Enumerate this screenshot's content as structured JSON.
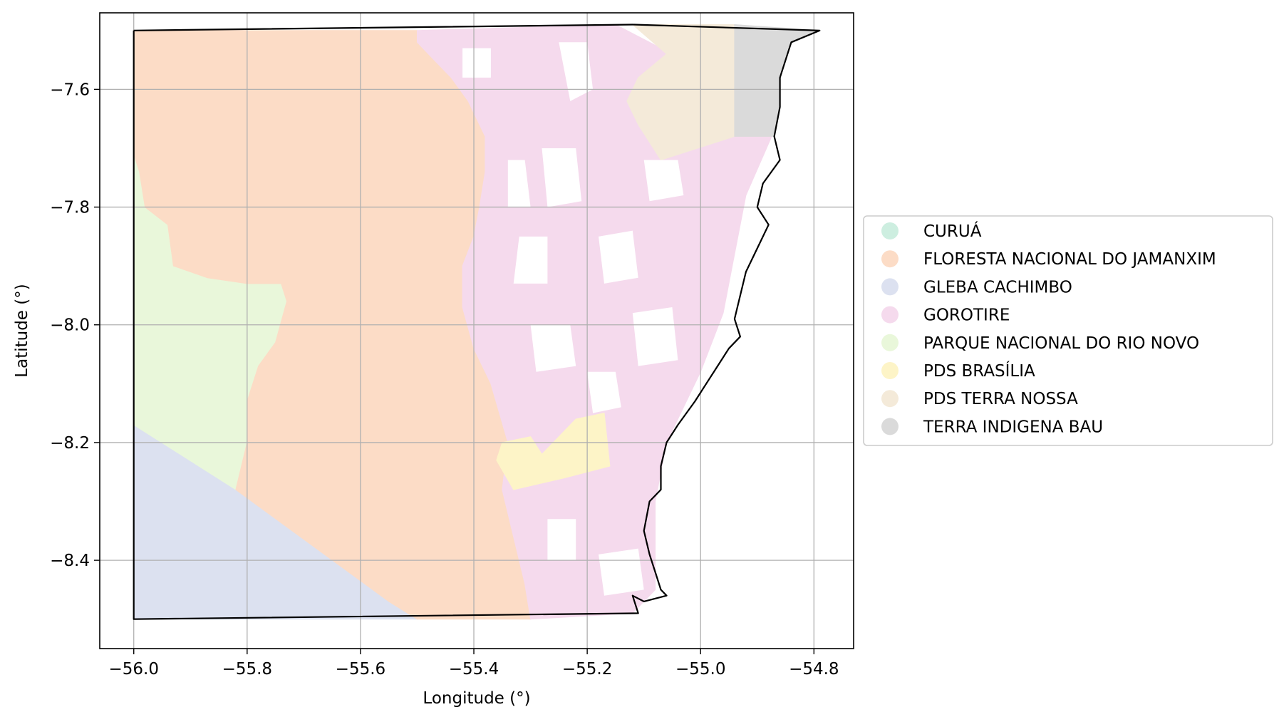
{
  "chart_data": {
    "type": "map",
    "xlabel": "Longitude (°)",
    "ylabel": "Latitude (°)",
    "xlim": [
      -56.06,
      -54.73
    ],
    "ylim": [
      -8.55,
      -7.47
    ],
    "xticks": [
      -56.0,
      -55.8,
      -55.6,
      -55.4,
      -55.2,
      -55.0,
      -54.8
    ],
    "xtick_labels": [
      "−56.0",
      "−55.8",
      "−55.6",
      "−55.4",
      "−55.2",
      "−55.0",
      "−54.8"
    ],
    "yticks": [
      -7.6,
      -7.8,
      -8.0,
      -8.2,
      -8.4
    ],
    "ytick_labels": [
      "−7.6",
      "−7.8",
      "−8.0",
      "−8.2",
      "−8.4"
    ],
    "grid": true,
    "legend_position": "right",
    "legend": [
      {
        "label": "CURUÁ",
        "color": "#cdeee0"
      },
      {
        "label": "FLORESTA NACIONAL DO JAMANXIM",
        "color": "#fcdcc6"
      },
      {
        "label": "GLEBA CACHIMBO",
        "color": "#dce1f0"
      },
      {
        "label": "GOROTIRE",
        "color": "#f5daed"
      },
      {
        "label": "PARQUE NACIONAL DO RIO NOVO",
        "color": "#e9f7da"
      },
      {
        "label": "PDS BRASÍLIA",
        "color": "#fdf4c7"
      },
      {
        "label": "PDS TERRA NOSSA",
        "color": "#f4ead9"
      },
      {
        "label": "TERRA INDIGENA BAU",
        "color": "#dadada"
      }
    ],
    "regions": [
      {
        "name": "GLEBA CACHIMBO",
        "color": "#dce1f0",
        "coords": [
          [
            -56.0,
            -8.17
          ],
          [
            -55.82,
            -8.28
          ],
          [
            -55.55,
            -8.47
          ],
          [
            -55.5,
            -8.5
          ],
          [
            -56.0,
            -8.5
          ]
        ]
      },
      {
        "name": "PARQUE NACIONAL DO RIO NOVO",
        "color": "#e9f7da",
        "coords": [
          [
            -56.0,
            -7.71
          ],
          [
            -55.99,
            -7.74
          ],
          [
            -55.98,
            -7.8
          ],
          [
            -55.94,
            -7.83
          ],
          [
            -55.93,
            -7.9
          ],
          [
            -55.87,
            -7.92
          ],
          [
            -55.8,
            -7.93
          ],
          [
            -55.74,
            -7.93
          ],
          [
            -55.73,
            -7.96
          ],
          [
            -55.75,
            -8.03
          ],
          [
            -55.78,
            -8.07
          ],
          [
            -55.8,
            -8.13
          ],
          [
            -55.8,
            -8.2
          ],
          [
            -55.82,
            -8.28
          ],
          [
            -56.0,
            -8.17
          ]
        ]
      },
      {
        "name": "FLORESTA NACIONAL DO JAMANXIM",
        "color": "#fcdcc6",
        "coords": [
          [
            -56.0,
            -7.5
          ],
          [
            -55.5,
            -7.5
          ],
          [
            -55.5,
            -7.52
          ],
          [
            -55.47,
            -7.55
          ],
          [
            -55.44,
            -7.58
          ],
          [
            -55.41,
            -7.62
          ],
          [
            -55.38,
            -7.68
          ],
          [
            -55.38,
            -7.74
          ],
          [
            -55.39,
            -7.8
          ],
          [
            -55.4,
            -7.85
          ],
          [
            -55.42,
            -7.9
          ],
          [
            -55.42,
            -7.97
          ],
          [
            -55.4,
            -8.04
          ],
          [
            -55.37,
            -8.1
          ],
          [
            -55.34,
            -8.2
          ],
          [
            -55.35,
            -8.28
          ],
          [
            -55.33,
            -8.36
          ],
          [
            -55.31,
            -8.44
          ],
          [
            -55.3,
            -8.5
          ],
          [
            -55.5,
            -8.5
          ],
          [
            -55.55,
            -8.47
          ],
          [
            -55.82,
            -8.28
          ],
          [
            -55.8,
            -8.2
          ],
          [
            -55.8,
            -8.13
          ],
          [
            -55.78,
            -8.07
          ],
          [
            -55.75,
            -8.03
          ],
          [
            -55.73,
            -7.96
          ],
          [
            -55.74,
            -7.93
          ],
          [
            -55.8,
            -7.93
          ],
          [
            -55.87,
            -7.92
          ],
          [
            -55.93,
            -7.9
          ],
          [
            -55.94,
            -7.83
          ],
          [
            -55.98,
            -7.8
          ],
          [
            -55.99,
            -7.74
          ],
          [
            -56.0,
            -7.71
          ]
        ]
      },
      {
        "name": "GOROTIRE",
        "color": "#f5daed",
        "coords": [
          [
            -55.5,
            -7.5
          ],
          [
            -55.15,
            -7.49
          ],
          [
            -55.05,
            -7.54
          ],
          [
            -55.11,
            -7.6
          ],
          [
            -55.07,
            -7.72
          ],
          [
            -54.96,
            -7.67
          ],
          [
            -54.87,
            -7.67
          ],
          [
            -54.92,
            -7.78
          ],
          [
            -54.94,
            -7.88
          ],
          [
            -54.96,
            -7.98
          ],
          [
            -55.0,
            -8.08
          ],
          [
            -55.06,
            -8.2
          ],
          [
            -55.08,
            -8.3
          ],
          [
            -55.08,
            -8.45
          ],
          [
            -55.12,
            -8.49
          ],
          [
            -55.3,
            -8.5
          ],
          [
            -55.31,
            -8.44
          ],
          [
            -55.33,
            -8.36
          ],
          [
            -55.35,
            -8.28
          ],
          [
            -55.34,
            -8.2
          ],
          [
            -55.37,
            -8.1
          ],
          [
            -55.4,
            -8.04
          ],
          [
            -55.42,
            -7.97
          ],
          [
            -55.42,
            -7.9
          ],
          [
            -55.4,
            -7.85
          ],
          [
            -55.39,
            -7.8
          ],
          [
            -55.38,
            -7.74
          ],
          [
            -55.38,
            -7.68
          ],
          [
            -55.41,
            -7.62
          ],
          [
            -55.44,
            -7.58
          ],
          [
            -55.47,
            -7.55
          ],
          [
            -55.5,
            -7.52
          ]
        ]
      },
      {
        "name": "PDS BRASÍLIA",
        "color": "#fdf4c7",
        "coords": [
          [
            -55.35,
            -8.2
          ],
          [
            -55.3,
            -8.19
          ],
          [
            -55.28,
            -8.22
          ],
          [
            -55.25,
            -8.19
          ],
          [
            -55.22,
            -8.16
          ],
          [
            -55.17,
            -8.15
          ],
          [
            -55.16,
            -8.24
          ],
          [
            -55.24,
            -8.26
          ],
          [
            -55.33,
            -8.28
          ],
          [
            -55.36,
            -8.23
          ]
        ]
      },
      {
        "name": "PDS TERRA NOSSA",
        "color": "#f4ead9",
        "coords": [
          [
            -55.12,
            -7.49
          ],
          [
            -54.94,
            -7.49
          ],
          [
            -54.94,
            -7.68
          ],
          [
            -55.07,
            -7.72
          ],
          [
            -55.11,
            -7.66
          ],
          [
            -55.13,
            -7.62
          ],
          [
            -55.11,
            -7.58
          ],
          [
            -55.06,
            -7.54
          ]
        ]
      },
      {
        "name": "TERRA INDIGENA BAU",
        "color": "#dadada",
        "coords": [
          [
            -54.94,
            -7.49
          ],
          [
            -54.79,
            -7.5
          ],
          [
            -54.84,
            -7.52
          ],
          [
            -54.86,
            -7.58
          ],
          [
            -54.86,
            -7.63
          ],
          [
            -54.87,
            -7.68
          ],
          [
            -54.94,
            -7.68
          ]
        ]
      }
    ],
    "gaps": [
      [
        [
          -55.25,
          -7.52
        ],
        [
          -55.2,
          -7.52
        ],
        [
          -55.19,
          -7.6
        ],
        [
          -55.23,
          -7.62
        ]
      ],
      [
        [
          -55.28,
          -7.7
        ],
        [
          -55.22,
          -7.7
        ],
        [
          -55.21,
          -7.79
        ],
        [
          -55.27,
          -7.8
        ]
      ],
      [
        [
          -55.32,
          -7.85
        ],
        [
          -55.27,
          -7.85
        ],
        [
          -55.27,
          -7.93
        ],
        [
          -55.33,
          -7.93
        ]
      ],
      [
        [
          -55.18,
          -7.85
        ],
        [
          -55.12,
          -7.84
        ],
        [
          -55.11,
          -7.92
        ],
        [
          -55.17,
          -7.93
        ]
      ],
      [
        [
          -55.3,
          -8.0
        ],
        [
          -55.23,
          -8.0
        ],
        [
          -55.22,
          -8.07
        ],
        [
          -55.29,
          -8.08
        ]
      ],
      [
        [
          -55.12,
          -7.98
        ],
        [
          -55.05,
          -7.97
        ],
        [
          -55.04,
          -8.06
        ],
        [
          -55.11,
          -8.07
        ]
      ],
      [
        [
          -55.2,
          -8.08
        ],
        [
          -55.15,
          -8.08
        ],
        [
          -55.14,
          -8.14
        ],
        [
          -55.19,
          -8.15
        ]
      ],
      [
        [
          -55.27,
          -8.33
        ],
        [
          -55.22,
          -8.33
        ],
        [
          -55.22,
          -8.4
        ],
        [
          -55.27,
          -8.4
        ]
      ],
      [
        [
          -55.18,
          -8.39
        ],
        [
          -55.11,
          -8.38
        ],
        [
          -55.1,
          -8.45
        ],
        [
          -55.17,
          -8.46
        ]
      ],
      [
        [
          -55.34,
          -7.72
        ],
        [
          -55.31,
          -7.72
        ],
        [
          -55.3,
          -7.8
        ],
        [
          -55.34,
          -7.8
        ]
      ],
      [
        [
          -55.1,
          -7.72
        ],
        [
          -55.04,
          -7.72
        ],
        [
          -55.03,
          -7.78
        ],
        [
          -55.09,
          -7.79
        ]
      ],
      [
        [
          -55.42,
          -7.53
        ],
        [
          -55.37,
          -7.53
        ],
        [
          -55.37,
          -7.58
        ],
        [
          -55.42,
          -7.58
        ]
      ]
    ],
    "boundary": [
      [
        -56.0,
        -7.5
      ],
      [
        -55.12,
        -7.49
      ],
      [
        -54.79,
        -7.5
      ],
      [
        -54.84,
        -7.52
      ],
      [
        -54.86,
        -7.58
      ],
      [
        -54.86,
        -7.63
      ],
      [
        -54.87,
        -7.68
      ],
      [
        -54.86,
        -7.72
      ],
      [
        -54.89,
        -7.76
      ],
      [
        -54.9,
        -7.8
      ],
      [
        -54.88,
        -7.83
      ],
      [
        -54.9,
        -7.87
      ],
      [
        -54.92,
        -7.91
      ],
      [
        -54.93,
        -7.95
      ],
      [
        -54.94,
        -7.99
      ],
      [
        -54.93,
        -8.02
      ],
      [
        -54.95,
        -8.04
      ],
      [
        -54.97,
        -8.07
      ],
      [
        -54.99,
        -8.1
      ],
      [
        -55.01,
        -8.13
      ],
      [
        -55.04,
        -8.17
      ],
      [
        -55.06,
        -8.2
      ],
      [
        -55.07,
        -8.24
      ],
      [
        -55.07,
        -8.28
      ],
      [
        -55.09,
        -8.3
      ],
      [
        -55.1,
        -8.35
      ],
      [
        -55.09,
        -8.39
      ],
      [
        -55.08,
        -8.42
      ],
      [
        -55.07,
        -8.45
      ],
      [
        -55.06,
        -8.46
      ],
      [
        -55.1,
        -8.47
      ],
      [
        -55.12,
        -8.46
      ],
      [
        -55.11,
        -8.49
      ],
      [
        -56.0,
        -8.5
      ],
      [
        -56.0,
        -7.5
      ]
    ]
  }
}
